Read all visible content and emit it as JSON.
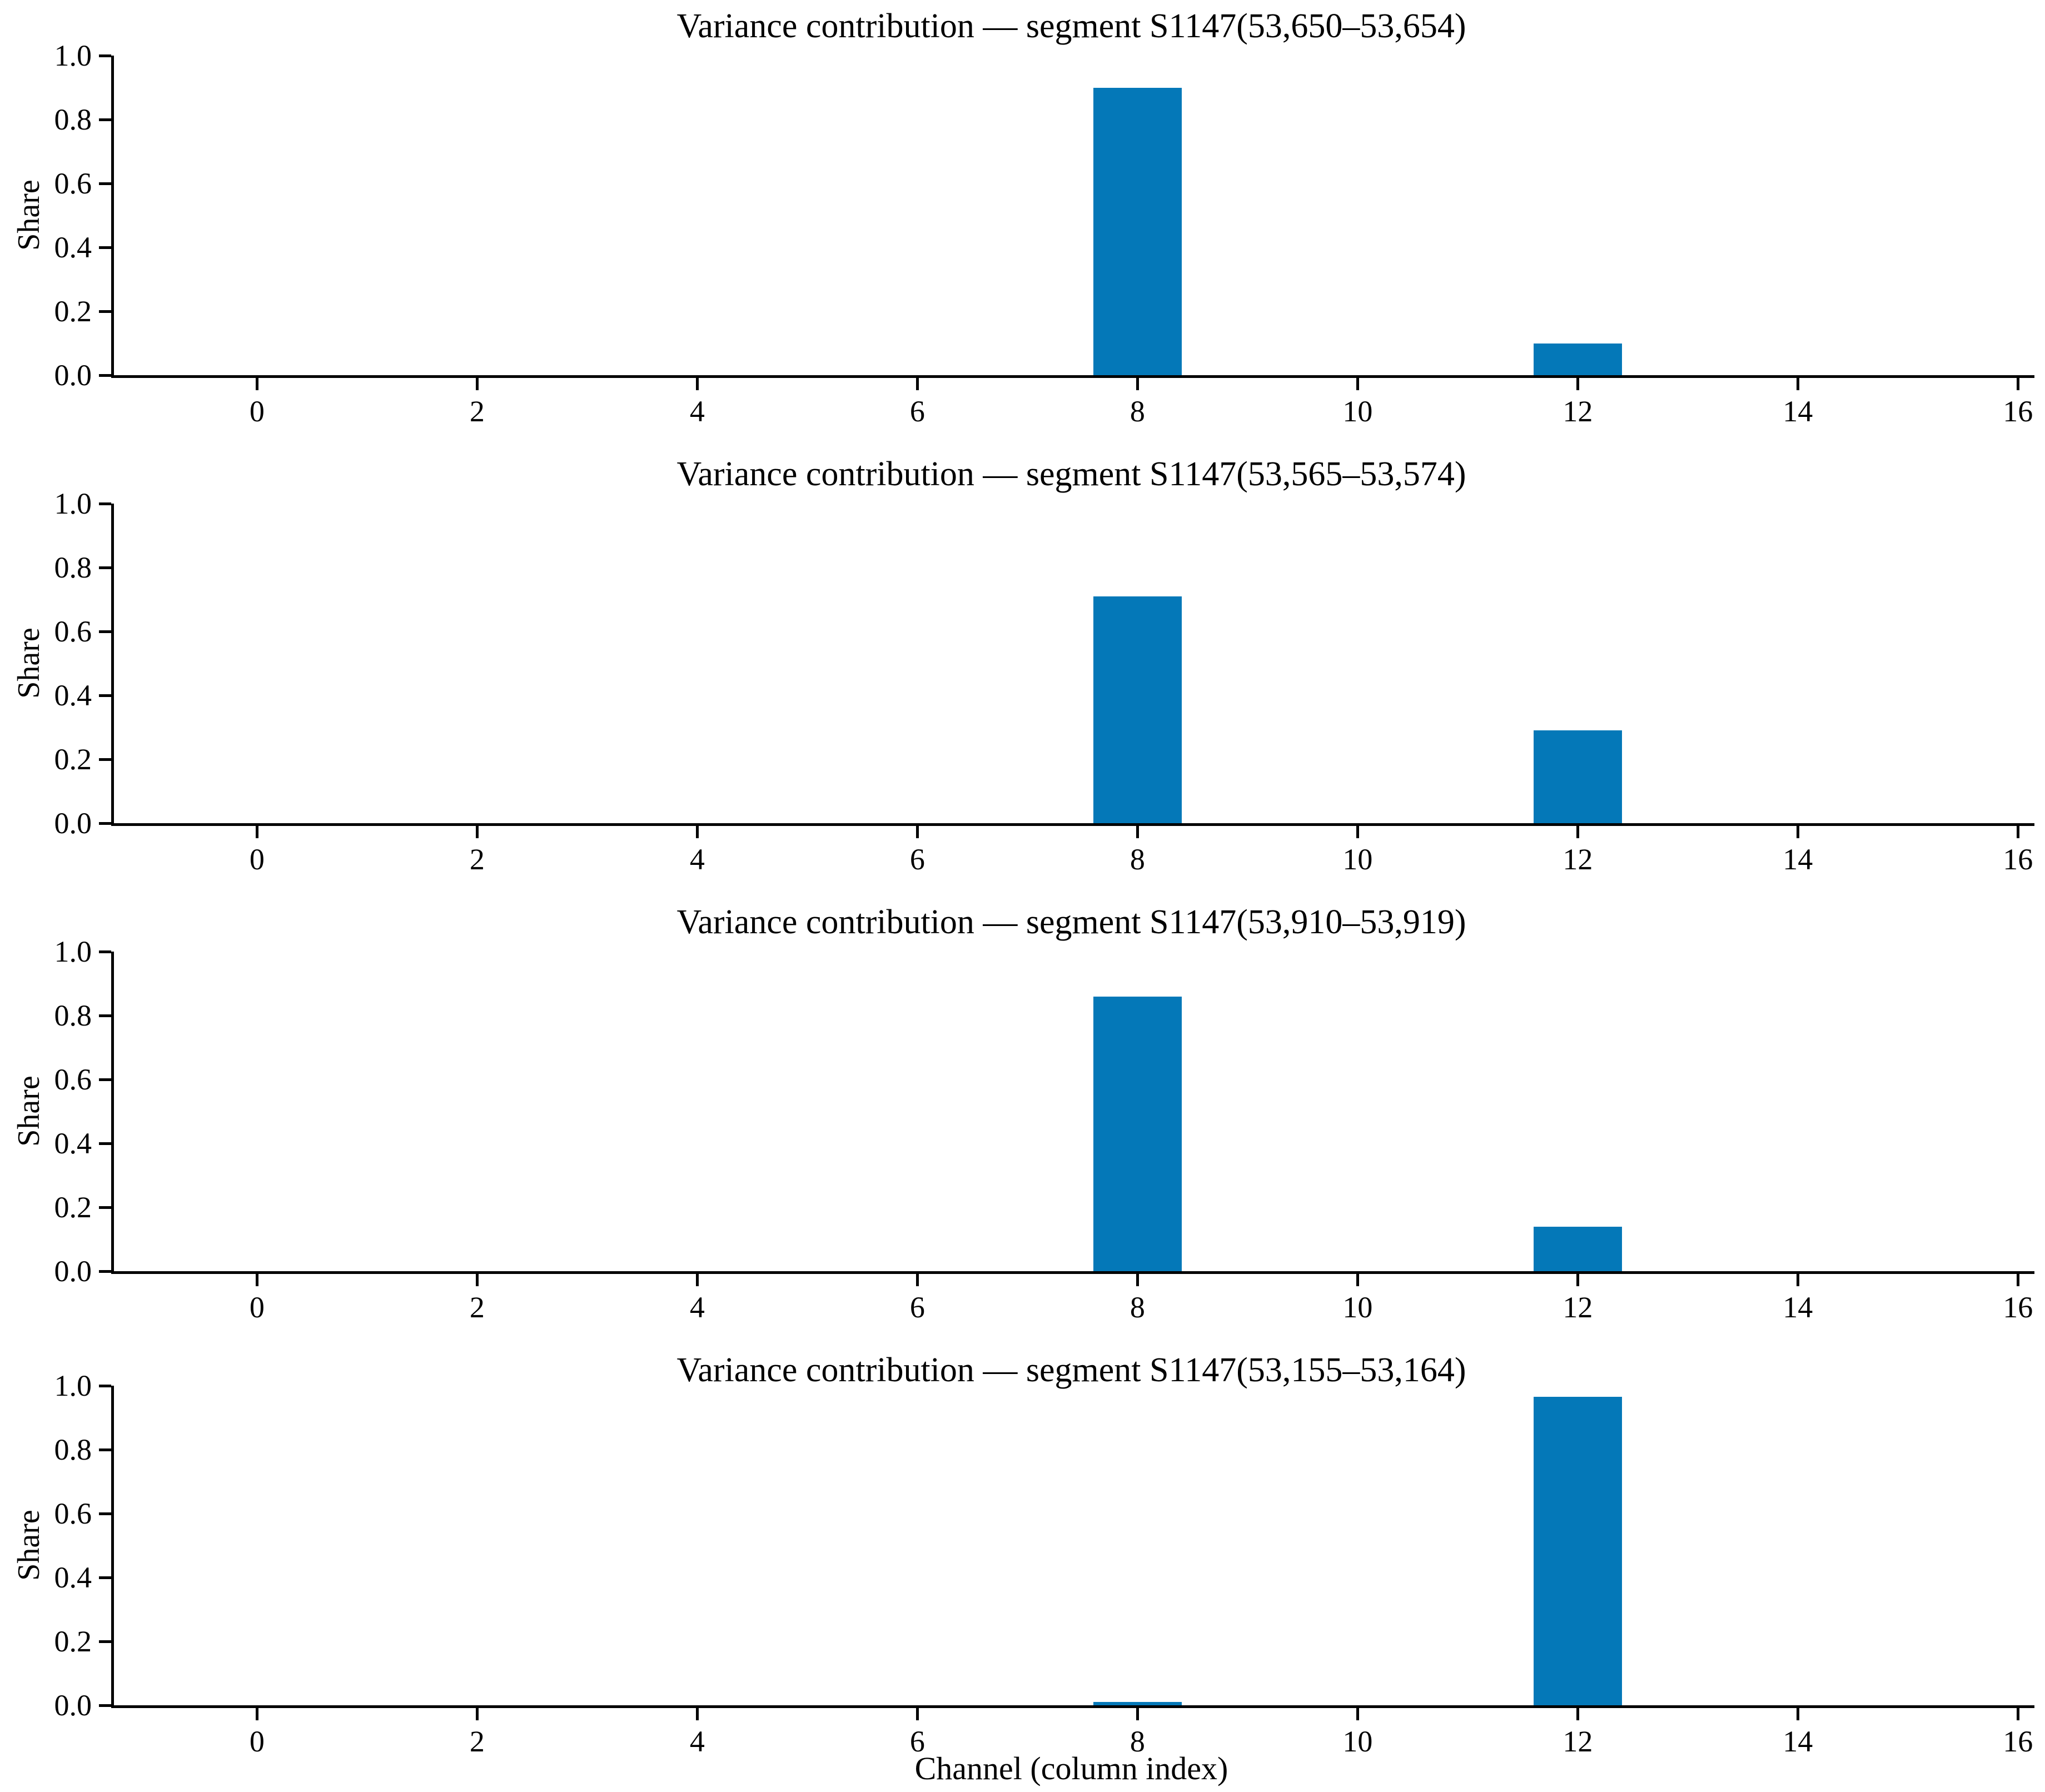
{
  "figure": {
    "ylabel": "Share",
    "xlabel": "Channel (column index)",
    "bar_color": "#0478b8"
  },
  "chart_data": [
    {
      "type": "bar",
      "title": "Variance contribution — segment S1147(53,650–53,654)",
      "ylabel": "Share",
      "xlabel": "",
      "x": [
        8,
        12
      ],
      "values": [
        0.9,
        0.1
      ],
      "bar_width": 0.8,
      "bar_color": "#0478b8",
      "xlim": [
        -1.3,
        16.15
      ],
      "ylim": [
        0,
        1.0
      ],
      "xticks": [
        0,
        2,
        4,
        6,
        8,
        10,
        12,
        14,
        16
      ],
      "yticks": [
        0.0,
        0.2,
        0.4,
        0.6,
        0.8,
        1.0
      ],
      "ytick_labels": [
        "0.0",
        "0.2",
        "0.4",
        "0.6",
        "0.8",
        "1.0"
      ],
      "grid": false,
      "legend": false
    },
    {
      "type": "bar",
      "title": "Variance contribution — segment S1147(53,565–53,574)",
      "ylabel": "Share",
      "xlabel": "",
      "x": [
        8,
        12
      ],
      "values": [
        0.71,
        0.29
      ],
      "bar_width": 0.8,
      "bar_color": "#0478b8",
      "xlim": [
        -1.3,
        16.15
      ],
      "ylim": [
        0,
        1.0
      ],
      "xticks": [
        0,
        2,
        4,
        6,
        8,
        10,
        12,
        14,
        16
      ],
      "yticks": [
        0.0,
        0.2,
        0.4,
        0.6,
        0.8,
        1.0
      ],
      "ytick_labels": [
        "0.0",
        "0.2",
        "0.4",
        "0.6",
        "0.8",
        "1.0"
      ],
      "grid": false,
      "legend": false
    },
    {
      "type": "bar",
      "title": "Variance contribution — segment S1147(53,910–53,919)",
      "ylabel": "Share",
      "xlabel": "",
      "x": [
        8,
        12
      ],
      "values": [
        0.86,
        0.14
      ],
      "bar_width": 0.8,
      "bar_color": "#0478b8",
      "xlim": [
        -1.3,
        16.15
      ],
      "ylim": [
        0,
        1.0
      ],
      "xticks": [
        0,
        2,
        4,
        6,
        8,
        10,
        12,
        14,
        16
      ],
      "yticks": [
        0.0,
        0.2,
        0.4,
        0.6,
        0.8,
        1.0
      ],
      "ytick_labels": [
        "0.0",
        "0.2",
        "0.4",
        "0.6",
        "0.8",
        "1.0"
      ],
      "grid": false,
      "legend": false
    },
    {
      "type": "bar",
      "title": "Variance contribution — segment S1147(53,155–53,164)",
      "ylabel": "Share",
      "xlabel": "Channel (column index)",
      "x": [
        8,
        12
      ],
      "values": [
        0.01,
        0.965
      ],
      "bar_width": 0.8,
      "bar_color": "#0478b8",
      "xlim": [
        -1.3,
        16.15
      ],
      "ylim": [
        0,
        1.0
      ],
      "xticks": [
        0,
        2,
        4,
        6,
        8,
        10,
        12,
        14,
        16
      ],
      "yticks": [
        0.0,
        0.2,
        0.4,
        0.6,
        0.8,
        1.0
      ],
      "ytick_labels": [
        "0.0",
        "0.2",
        "0.4",
        "0.6",
        "0.8",
        "1.0"
      ],
      "grid": false,
      "legend": false
    }
  ]
}
